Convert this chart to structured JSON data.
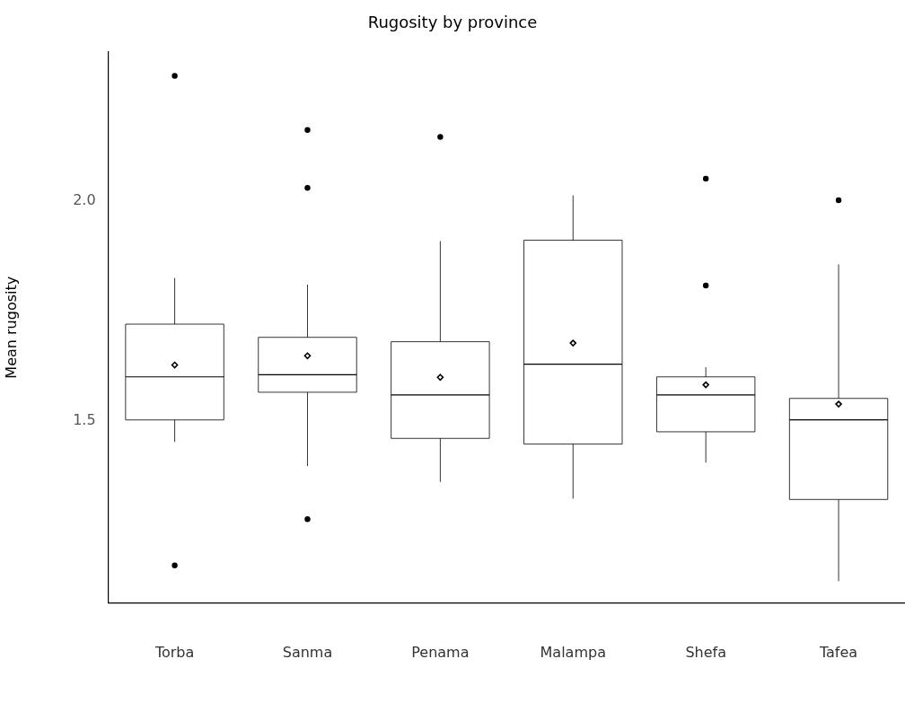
{
  "chart_data": {
    "type": "box",
    "title": "Rugosity by province",
    "ylabel": "Mean rugosity",
    "categories": [
      "Torba",
      "Sanma",
      "Penama",
      "Malampa",
      "Shefa",
      "Tafea"
    ],
    "boxes": [
      {
        "low": 1.452,
        "q1": 1.502,
        "median": 1.6,
        "q3": 1.72,
        "high": 1.825,
        "mean": 1.627,
        "outliers": [
          2.285,
          1.171
        ]
      },
      {
        "low": 1.397,
        "q1": 1.565,
        "median": 1.605,
        "q3": 1.69,
        "high": 1.81,
        "mean": 1.648,
        "outliers": [
          2.162,
          2.03,
          1.276
        ]
      },
      {
        "low": 1.361,
        "q1": 1.46,
        "median": 1.559,
        "q3": 1.68,
        "high": 1.909,
        "mean": 1.599,
        "outliers": [
          2.146
        ]
      },
      {
        "low": 1.323,
        "q1": 1.447,
        "median": 1.629,
        "q3": 1.911,
        "high": 2.013,
        "mean": 1.677
      },
      {
        "low": 1.405,
        "q1": 1.475,
        "median": 1.559,
        "q3": 1.6,
        "high": 1.622,
        "mean": 1.582,
        "outliers": [
          2.051,
          1.808
        ]
      },
      {
        "low": 1.135,
        "q1": 1.321,
        "median": 1.502,
        "q3": 1.551,
        "high": 1.856,
        "mean": 1.538,
        "outliers": [
          2.002
        ]
      }
    ],
    "ylim": [
      1.085,
      2.34
    ],
    "yticks": [
      {
        "value": 1.5,
        "label": "1.5"
      },
      {
        "value": 2.0,
        "label": "2.0"
      }
    ],
    "grid": false,
    "legend": false
  }
}
